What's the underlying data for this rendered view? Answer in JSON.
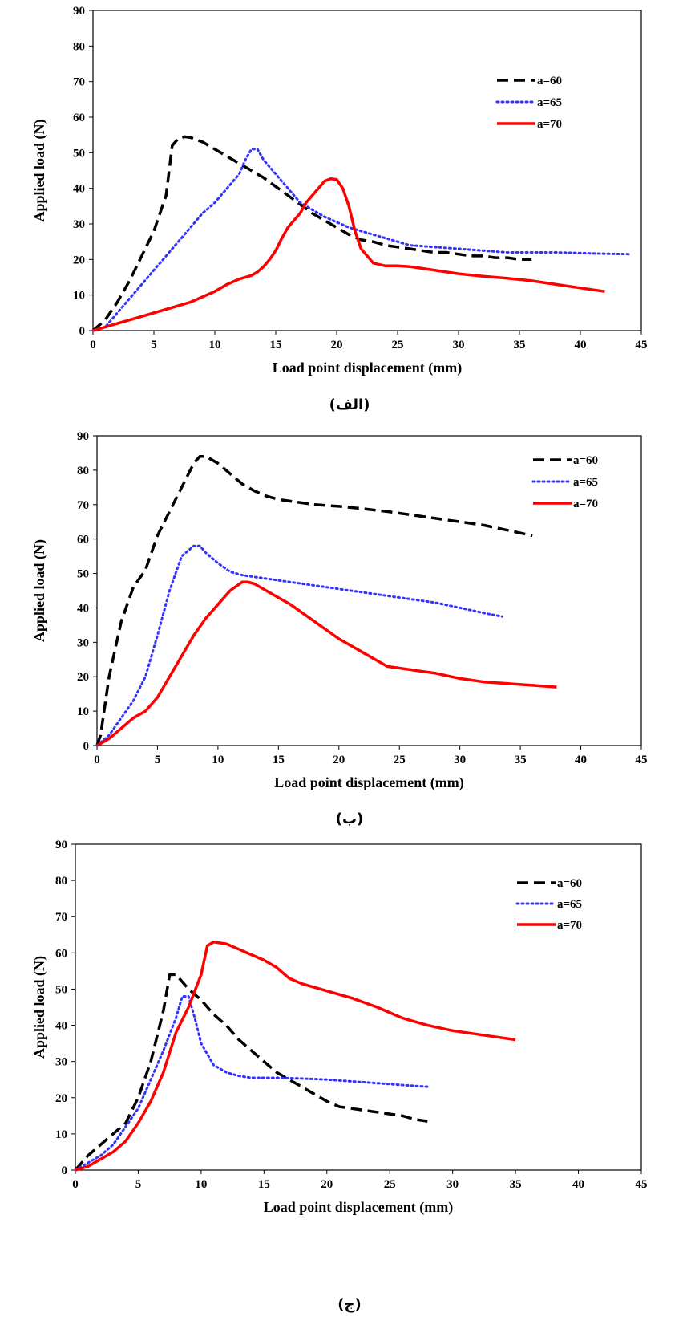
{
  "chart_data": [
    {
      "type": "line",
      "xlabel": "Load point displacement (mm)",
      "ylabel": "Applied load (N)",
      "xlim": [
        0,
        45
      ],
      "ylim": [
        0,
        90
      ],
      "x_ticks": [
        "0",
        "5",
        "10",
        "15",
        "20",
        "25",
        "30",
        "35",
        "40",
        "45"
      ],
      "y_ticks": [
        "0",
        "10",
        "20",
        "30",
        "40",
        "50",
        "60",
        "70",
        "80",
        "90"
      ],
      "grid": false,
      "legend_position": "top-right",
      "caption": "(الف)",
      "series": [
        {
          "name": "a=60",
          "color": "#000000",
          "dash": "dashed",
          "x": [
            0,
            1,
            2,
            3,
            4,
            5,
            6,
            6.5,
            7,
            7.5,
            8,
            9,
            10,
            11,
            12,
            13,
            14,
            15,
            16,
            17,
            18,
            19,
            20,
            21,
            22,
            23,
            24,
            25,
            26,
            27,
            28,
            29,
            30,
            31,
            32,
            33,
            34,
            35,
            36
          ],
          "y": [
            0,
            3,
            8,
            14,
            21,
            28,
            38,
            52,
            54,
            54.5,
            54.3,
            53,
            51,
            49,
            47,
            45,
            43,
            40.5,
            38,
            35.5,
            33,
            31,
            29,
            27,
            25.5,
            25,
            24,
            23.5,
            23,
            22.5,
            22,
            22,
            21.5,
            21,
            21,
            20.5,
            20.5,
            20,
            20
          ]
        },
        {
          "name": "a=65",
          "color": "#3333ff",
          "dash": "dotted",
          "x": [
            0,
            1,
            2,
            3,
            4,
            5,
            6,
            7,
            8,
            9,
            10,
            11,
            12,
            12.5,
            13,
            13.5,
            14,
            15,
            16,
            17,
            18,
            19,
            20,
            21,
            22,
            23,
            24,
            25,
            26,
            28,
            30,
            32,
            34,
            36,
            38,
            40,
            42,
            44
          ],
          "y": [
            0,
            1,
            5,
            9,
            13,
            17,
            21,
            25,
            29,
            33,
            36,
            40,
            44,
            48,
            51,
            51,
            48,
            44,
            40,
            36,
            34,
            32,
            30.5,
            29,
            28,
            27,
            26,
            25,
            24,
            23.5,
            23,
            22.5,
            22,
            22,
            22,
            21.8,
            21.6,
            21.5
          ]
        },
        {
          "name": "a=70",
          "color": "#ff0000",
          "dash": "solid",
          "x": [
            0,
            2,
            4,
            6,
            8,
            10,
            11,
            12,
            13,
            13.5,
            14,
            14.5,
            15,
            15.5,
            16,
            16.5,
            17,
            17.5,
            18,
            18.5,
            19,
            19.5,
            20,
            20.5,
            21,
            21.5,
            22,
            23,
            24,
            25,
            26,
            27,
            28,
            30,
            32,
            34,
            36,
            38,
            40,
            42
          ],
          "y": [
            0,
            2,
            4,
            6,
            8,
            11,
            13,
            14.5,
            15.5,
            16.5,
            18,
            20,
            22.5,
            26,
            29,
            31,
            33,
            36,
            38,
            40,
            42,
            42.7,
            42.5,
            40,
            35,
            28,
            23,
            19,
            18.2,
            18.2,
            18,
            17.5,
            17,
            16,
            15.3,
            14.7,
            14,
            13,
            12,
            11
          ]
        }
      ]
    },
    {
      "type": "line",
      "xlabel": "Load point displacement (mm)",
      "ylabel": "Applied load (N)",
      "xlim": [
        0,
        45
      ],
      "ylim": [
        0,
        90
      ],
      "x_ticks": [
        "0",
        "5",
        "10",
        "15",
        "20",
        "25",
        "30",
        "35",
        "40",
        "45"
      ],
      "y_ticks": [
        "0",
        "10",
        "20",
        "30",
        "40",
        "50",
        "60",
        "70",
        "80",
        "90"
      ],
      "grid": false,
      "legend_position": "top-right",
      "caption": "(ب)",
      "series": [
        {
          "name": "a=60",
          "color": "#000000",
          "dash": "dashed",
          "x": [
            0,
            0.3,
            1,
            2,
            3,
            4,
            5,
            6,
            7,
            8,
            8.5,
            9,
            10,
            11,
            12,
            13,
            14,
            15,
            16,
            18,
            20,
            22,
            24,
            26,
            28,
            30,
            32,
            34,
            36
          ],
          "y": [
            0,
            3,
            20,
            36,
            46,
            51,
            61,
            68,
            75,
            82,
            84,
            84,
            82,
            79,
            76,
            74,
            72.5,
            71.5,
            71,
            70,
            69.5,
            68.8,
            68,
            67,
            66,
            65,
            64,
            62.5,
            61
          ]
        },
        {
          "name": "a=65",
          "color": "#3333ff",
          "dash": "dotted",
          "x": [
            0,
            1,
            2,
            3,
            4,
            5,
            6,
            7,
            8,
            8.5,
            9,
            10,
            11,
            12,
            13,
            14,
            16,
            18,
            20,
            22,
            24,
            26,
            28,
            30,
            32,
            33.5
          ],
          "y": [
            0,
            3,
            8,
            13,
            20,
            32,
            45,
            55,
            58,
            58,
            56,
            53,
            50.5,
            49.5,
            49,
            48.5,
            47.5,
            46.5,
            45.5,
            44.5,
            43.5,
            42.5,
            41.5,
            40,
            38.5,
            37.5
          ]
        },
        {
          "name": "a=70",
          "color": "#ff0000",
          "dash": "solid",
          "x": [
            0,
            1,
            2,
            3,
            4,
            5,
            6,
            7,
            8,
            9,
            10,
            11,
            12,
            12.5,
            13,
            14,
            15,
            16,
            18,
            20,
            22,
            24,
            25,
            26,
            27,
            28,
            30,
            32,
            34,
            36,
            38
          ],
          "y": [
            0,
            2,
            5,
            8,
            10,
            14,
            20,
            26,
            32,
            37,
            41,
            45,
            47.5,
            47.5,
            47,
            45,
            43,
            41,
            36,
            31,
            27,
            23,
            22.5,
            22,
            21.5,
            21,
            19.5,
            18.5,
            18,
            17.5,
            17
          ]
        }
      ]
    },
    {
      "type": "line",
      "xlabel": "Load point displacement (mm)",
      "ylabel": "Applied load (N)",
      "xlim": [
        0,
        45
      ],
      "ylim": [
        0,
        90
      ],
      "x_ticks": [
        "0",
        "5",
        "10",
        "15",
        "20",
        "25",
        "30",
        "35",
        "40",
        "45"
      ],
      "y_ticks": [
        "0",
        "10",
        "20",
        "30",
        "40",
        "50",
        "60",
        "70",
        "80",
        "90"
      ],
      "grid": false,
      "legend_position": "top-right",
      "caption": "(ج)",
      "series": [
        {
          "name": "a=60",
          "color": "#000000",
          "dash": "dashed",
          "x": [
            0,
            1,
            2,
            3,
            4,
            5,
            6,
            7,
            7.5,
            8,
            8.5,
            9,
            10,
            11,
            12,
            13,
            14,
            15,
            16,
            17,
            18,
            19,
            20,
            21,
            22,
            23,
            24,
            25,
            26,
            27,
            28
          ],
          "y": [
            0,
            4,
            7,
            10,
            13,
            20,
            30,
            44,
            54,
            54,
            52,
            50,
            47,
            43,
            40,
            36,
            33,
            30,
            27,
            25,
            23,
            21,
            19,
            17.5,
            17,
            16.5,
            16,
            15.5,
            15,
            14,
            13.5
          ]
        },
        {
          "name": "a=65",
          "color": "#3333ff",
          "dash": "dotted",
          "x": [
            0,
            1,
            2,
            3,
            4,
            5,
            6,
            7,
            8,
            8.5,
            9,
            9.5,
            10,
            11,
            12,
            13,
            14,
            16,
            18,
            20,
            22,
            24,
            26,
            28
          ],
          "y": [
            0,
            2,
            4,
            7,
            12,
            17,
            25,
            33,
            42,
            48,
            48,
            42,
            35,
            29,
            27,
            26,
            25.5,
            25.5,
            25.3,
            25,
            24.5,
            24,
            23.5,
            23
          ]
        },
        {
          "name": "a=70",
          "color": "#ff0000",
          "dash": "solid",
          "x": [
            0,
            1,
            2,
            3,
            4,
            5,
            6,
            7,
            8,
            9,
            10,
            10.5,
            11,
            12,
            13,
            14,
            15,
            16,
            17,
            18,
            20,
            22,
            24,
            26,
            28,
            30,
            32,
            34,
            35
          ],
          "y": [
            0,
            1,
            3,
            5,
            8,
            13,
            19,
            27,
            38,
            45,
            54,
            62,
            63,
            62.5,
            61,
            59.5,
            58,
            56,
            53,
            51.5,
            49.5,
            47.5,
            45,
            42,
            40,
            38.5,
            37.5,
            36.5,
            36
          ]
        }
      ]
    }
  ]
}
